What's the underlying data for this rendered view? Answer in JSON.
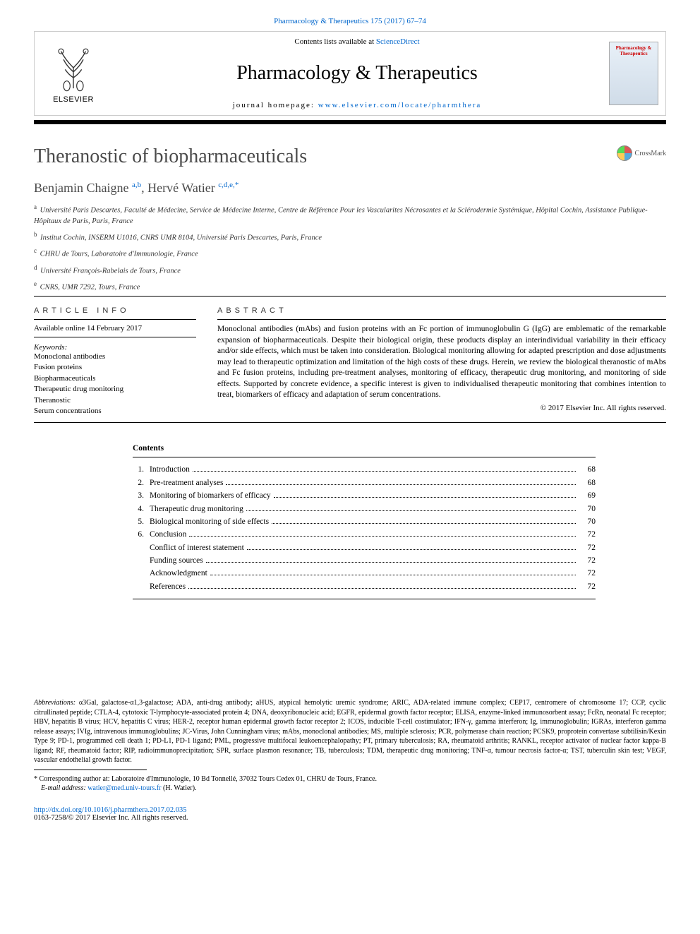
{
  "citation": {
    "journal_link": "Pharmacology & Therapeutics 175 (2017) 67–74"
  },
  "banner": {
    "contents_text": "Contents lists available at ",
    "sciencedirect": "ScienceDirect",
    "journal_name": "Pharmacology & Therapeutics",
    "homepage_label": "journal homepage: ",
    "homepage_url": "www.elsevier.com/locate/pharmthera",
    "elsevier": "ELSEVIER",
    "cover_text": "Pharmacology & Therapeutics"
  },
  "article": {
    "title": "Theranostic of biopharmaceuticals",
    "crossmark": "CrossMark"
  },
  "authors": {
    "a1_name": "Benjamin Chaigne ",
    "a1_aff": "a,b",
    "sep": ", ",
    "a2_name": "Hervé Watier ",
    "a2_aff": "c,d,e,",
    "a2_star": "*"
  },
  "affiliations": [
    {
      "sup": "a",
      "text": "Université Paris Descartes, Faculté de Médecine, Service de Médecine Interne, Centre de Référence Pour les Vascularites Nécrosantes et la Sclérodermie Systémique, Hôpital Cochin, Assistance Publique-Hôpitaux de Paris, Paris, France"
    },
    {
      "sup": "b",
      "text": "Institut Cochin, INSERM U1016, CNRS UMR 8104, Université Paris Descartes, Paris, France"
    },
    {
      "sup": "c",
      "text": "CHRU de Tours, Laboratoire d'Immunologie, France"
    },
    {
      "sup": "d",
      "text": "Université François-Rabelais de Tours, France"
    },
    {
      "sup": "e",
      "text": "CNRS, UMR 7292, Tours, France"
    }
  ],
  "info": {
    "heading": "article info",
    "online": "Available online 14 February 2017",
    "keywords_label": "Keywords:",
    "keywords": [
      "Monoclonal antibodies",
      "Fusion proteins",
      "Biopharmaceuticals",
      "Therapeutic drug monitoring",
      "Theranostic",
      "Serum concentrations"
    ]
  },
  "abstract": {
    "heading": "abstract",
    "text": "Monoclonal antibodies (mAbs) and fusion proteins with an Fc portion of immunoglobulin G (IgG) are emblematic of the remarkable expansion of biopharmaceuticals. Despite their biological origin, these products display an interindividual variability in their efficacy and/or side effects, which must be taken into consideration. Biological monitoring allowing for adapted prescription and dose adjustments may lead to therapeutic optimization and limitation of the high costs of these drugs. Herein, we review the biological theranostic of mAbs and Fc fusion proteins, including pre-treatment analyses, monitoring of efficacy, therapeutic drug monitoring, and monitoring of side effects. Supported by concrete evidence, a specific interest is given to individualised therapeutic monitoring that combines intention to treat, biomarkers of efficacy and adaptation of serum concentrations.",
    "copyright": "© 2017 Elsevier Inc. All rights reserved."
  },
  "contents": {
    "heading": "Contents",
    "items": [
      {
        "num": "1.",
        "title": "Introduction",
        "page": "68"
      },
      {
        "num": "2.",
        "title": "Pre-treatment analyses",
        "page": "68"
      },
      {
        "num": "3.",
        "title": "Monitoring of biomarkers of efficacy",
        "page": "69"
      },
      {
        "num": "4.",
        "title": "Therapeutic drug monitoring",
        "page": "70"
      },
      {
        "num": "5.",
        "title": "Biological monitoring of side effects",
        "page": "70"
      },
      {
        "num": "6.",
        "title": "Conclusion",
        "page": "72"
      },
      {
        "num": "",
        "title": "Conflict of interest statement",
        "page": "72"
      },
      {
        "num": "",
        "title": "Funding sources",
        "page": "72"
      },
      {
        "num": "",
        "title": "Acknowledgment",
        "page": "72"
      },
      {
        "num": "",
        "title": "References",
        "page": "72"
      }
    ]
  },
  "footer": {
    "abbrev_label": "Abbreviations: ",
    "abbrev_text": "α3Gal, galactose-α1,3-galactose; ADA, anti-drug antibody; aHUS, atypical hemolytic uremic syndrome; ARIC, ADA-related immune complex; CEP17, centromere of chromosome 17; CCP, cyclic citrullinated peptide; CTLA-4, cytotoxic T-lymphocyte-associated protein 4; DNA, deoxyribonucleic acid; EGFR, epidermal growth factor receptor; ELISA, enzyme-linked immunosorbent assay; FcRn, neonatal Fc receptor; HBV, hepatitis B virus; HCV, hepatitis C virus; HER-2, receptor human epidermal growth factor receptor 2; ICOS, inducible T-cell costimulator; IFN-γ, gamma interferon; Ig, immunoglobulin; IGRAs, interferon gamma release assays; IVIg, intravenous immunoglobulins; JC-Virus, John Cunningham virus; mAbs, monoclonal antibodies; MS, multiple sclerosis; PCR, polymerase chain reaction; PCSK9, proprotein convertase subtilisin/Kexin Type 9; PD-1, programmed cell death 1; PD-L1, PD-1 ligand; PML, progressive multifocal leukoencephalopathy; PT, primary tuberculosis; RA, rheumatoid arthritis; RANKL, receptor activator of nuclear factor kappa-B ligand; RF, rheumatoid factor; RIP, radioimmunoprecipitation; SPR, surface plasmon resonance; TB, tuberculosis; TDM, therapeutic drug monitoring; TNF-α, tumour necrosis factor-α; TST, tuberculin skin test; VEGF, vascular endothelial growth factor.",
    "corr_star": "*",
    "corr_text": " Corresponding author at: Laboratoire d'Immunologie, 10 Bd Tonnellé, 37032 Tours Cedex 01, CHRU de Tours, France.",
    "email_label": "E-mail address: ",
    "email": "watier@med.univ-tours.fr",
    "email_suffix": " (H. Watier)."
  },
  "doi": {
    "url": "http://dx.doi.org/10.1016/j.pharmthera.2017.02.035",
    "issn_line": "0163-7258/© 2017 Elsevier Inc. All rights reserved."
  },
  "colors": {
    "link": "#0066cc",
    "text": "#000000",
    "title_gray": "#4a4a4a"
  }
}
